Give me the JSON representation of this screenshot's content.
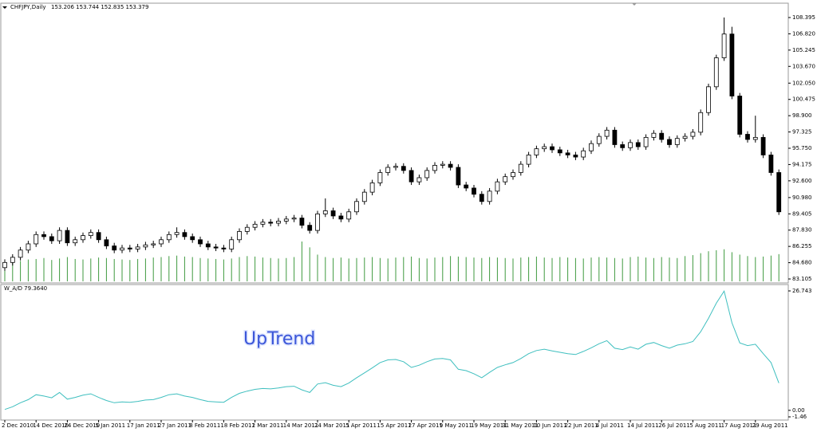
{
  "chart_data": [
    {
      "type": "candlestick",
      "title": "CHFJPY,Daily",
      "subtitle": "153.206 153.744 152.835 153.379",
      "categories": [
        "2 Dec 2010",
        null,
        null,
        null,
        "14 Dec 2010",
        null,
        null,
        null,
        "24 Dec 2010",
        null,
        null,
        null,
        "5 Jan 2011",
        null,
        null,
        null,
        "17 Jan 2011",
        null,
        null,
        null,
        "27 Jan 2011",
        null,
        null,
        null,
        "8 Feb 2011",
        null,
        null,
        null,
        "18 Feb 2011",
        null,
        null,
        null,
        "2 Mar 2011",
        null,
        null,
        null,
        "14 Mar 2011",
        null,
        null,
        null,
        "24 Mar 2011",
        null,
        null,
        null,
        "5 Apr 2011",
        null,
        null,
        null,
        "15 Apr 2011",
        null,
        null,
        null,
        "27 Apr 2011",
        null,
        null,
        null,
        "9 May 2011",
        null,
        null,
        null,
        "19 May 2011",
        null,
        null,
        null,
        "31 May 2011",
        null,
        null,
        null,
        "10 Jun 2011",
        null,
        null,
        null,
        "22 Jun 2011",
        null,
        null,
        null,
        "4 Jul 2011",
        null,
        null,
        null,
        "14 Jul 2011",
        null,
        null,
        null,
        "26 Jul 2011",
        null,
        null,
        null,
        "5 Aug 2011",
        null,
        null,
        null,
        "17 Aug 2011",
        null,
        null,
        null,
        "29 Aug 2011",
        null,
        null,
        null
      ],
      "open": [
        84.2,
        84.7,
        85.2,
        85.9,
        86.5,
        87.4,
        87.2,
        86.8,
        87.8,
        86.6,
        86.9,
        87.3,
        87.6,
        86.9,
        86.3,
        85.9,
        86.1,
        86.0,
        86.2,
        86.4,
        86.5,
        86.9,
        87.4,
        87.6,
        87.2,
        86.9,
        86.5,
        86.2,
        86.1,
        86.0,
        86.9,
        87.7,
        88.1,
        88.4,
        88.6,
        88.5,
        88.7,
        88.9,
        89.0,
        88.3,
        87.8,
        89.4,
        89.7,
        89.2,
        88.9,
        89.6,
        90.6,
        91.5,
        92.4,
        93.4,
        93.9,
        94.0,
        93.6,
        92.5,
        92.9,
        93.6,
        94.1,
        94.2,
        93.9,
        92.2,
        91.9,
        91.3,
        90.6,
        91.6,
        92.5,
        93.0,
        93.4,
        94.2,
        95.1,
        95.7,
        95.9,
        95.6,
        95.3,
        95.1,
        94.9,
        95.5,
        96.2,
        96.9,
        97.5,
        96.1,
        95.8,
        96.3,
        95.9,
        96.8,
        97.2,
        96.6,
        96.1,
        96.7,
        96.9,
        97.3,
        99.2,
        101.7,
        104.5,
        106.8,
        100.8,
        97.1,
        96.6,
        96.8,
        95.1,
        93.4
      ],
      "high": [
        85.0,
        85.5,
        86.2,
        86.8,
        87.7,
        87.7,
        87.5,
        88.1,
        88.1,
        87.2,
        87.6,
        87.9,
        87.9,
        87.2,
        86.6,
        86.4,
        86.4,
        86.5,
        86.7,
        86.8,
        87.2,
        87.7,
        88.1,
        87.9,
        87.5,
        87.2,
        86.8,
        86.5,
        86.4,
        87.2,
        88.0,
        88.4,
        88.7,
        88.9,
        88.9,
        89.0,
        89.2,
        89.3,
        89.3,
        88.6,
        89.7,
        90.9,
        90.0,
        89.5,
        89.9,
        90.9,
        91.8,
        92.7,
        93.7,
        94.2,
        94.3,
        94.3,
        93.9,
        93.2,
        93.9,
        94.4,
        94.5,
        94.5,
        94.2,
        92.5,
        92.2,
        91.6,
        91.9,
        92.8,
        93.3,
        93.7,
        94.5,
        95.4,
        96.0,
        96.2,
        96.2,
        95.9,
        95.6,
        95.4,
        95.8,
        96.5,
        97.2,
        97.8,
        97.8,
        96.4,
        96.6,
        96.6,
        97.1,
        97.5,
        97.5,
        96.9,
        97.0,
        97.2,
        97.6,
        99.5,
        102.0,
        104.8,
        108.4,
        107.5,
        101.1,
        97.4,
        98.9,
        97.1,
        95.4,
        93.7
      ],
      "low": [
        83.9,
        84.4,
        84.9,
        85.6,
        86.2,
        86.9,
        86.5,
        86.5,
        86.3,
        86.3,
        86.6,
        87.0,
        86.6,
        86.0,
        85.6,
        85.6,
        85.7,
        85.7,
        85.9,
        86.1,
        86.2,
        86.6,
        87.1,
        86.9,
        86.6,
        86.2,
        85.9,
        85.8,
        85.7,
        85.7,
        86.6,
        87.4,
        87.8,
        88.1,
        88.2,
        88.2,
        88.4,
        88.6,
        88.0,
        87.5,
        87.5,
        89.1,
        88.9,
        88.6,
        88.6,
        89.3,
        90.3,
        91.2,
        92.1,
        93.1,
        93.6,
        93.3,
        92.2,
        92.2,
        92.6,
        93.3,
        93.8,
        93.6,
        91.9,
        91.6,
        91.0,
        90.3,
        90.3,
        91.3,
        92.2,
        92.7,
        93.1,
        93.9,
        94.8,
        95.4,
        95.3,
        95.0,
        94.8,
        94.6,
        94.6,
        95.2,
        95.9,
        96.6,
        95.8,
        95.5,
        95.5,
        95.6,
        95.6,
        96.5,
        96.3,
        95.8,
        95.8,
        96.4,
        96.6,
        97.0,
        98.9,
        101.4,
        104.2,
        100.5,
        96.8,
        96.3,
        96.3,
        94.8,
        93.1,
        89.3
      ],
      "close": [
        84.7,
        85.2,
        85.9,
        86.5,
        87.4,
        87.2,
        86.8,
        87.8,
        86.6,
        86.9,
        87.3,
        87.6,
        86.9,
        86.3,
        85.9,
        86.1,
        86.0,
        86.2,
        86.4,
        86.5,
        86.9,
        87.4,
        87.6,
        87.2,
        86.9,
        86.5,
        86.2,
        86.1,
        86.0,
        86.9,
        87.7,
        88.1,
        88.4,
        88.6,
        88.5,
        88.7,
        88.9,
        89.0,
        88.3,
        87.8,
        89.4,
        89.7,
        89.2,
        88.9,
        89.6,
        90.6,
        91.5,
        92.4,
        93.4,
        93.9,
        94.0,
        93.6,
        92.5,
        92.9,
        93.6,
        94.1,
        94.2,
        93.9,
        92.2,
        91.9,
        91.3,
        90.6,
        91.6,
        92.5,
        93.0,
        93.4,
        94.2,
        95.1,
        95.7,
        95.9,
        95.6,
        95.3,
        95.1,
        94.9,
        95.5,
        96.2,
        96.9,
        97.5,
        96.1,
        95.8,
        96.3,
        95.9,
        96.8,
        97.2,
        96.6,
        96.1,
        96.7,
        96.9,
        97.3,
        99.2,
        101.7,
        104.5,
        106.8,
        100.8,
        97.1,
        96.6,
        96.8,
        95.1,
        93.4,
        89.6
      ],
      "volume": [
        38,
        40,
        42,
        45,
        46,
        48,
        44,
        47,
        50,
        46,
        45,
        47,
        49,
        48,
        46,
        45,
        44,
        46,
        47,
        49,
        50,
        52,
        53,
        51,
        50,
        48,
        47,
        46,
        45,
        47,
        50,
        52,
        51,
        49,
        48,
        47,
        48,
        50,
        82,
        70,
        55,
        50,
        48,
        49,
        47,
        48,
        49,
        50,
        48,
        47,
        49,
        50,
        51,
        48,
        47,
        49,
        50,
        52,
        51,
        50,
        49,
        48,
        50,
        49,
        48,
        47,
        49,
        50,
        51,
        49,
        48,
        50,
        49,
        48,
        47,
        49,
        50,
        49,
        48,
        47,
        50,
        51,
        49,
        48,
        50,
        49,
        48,
        52,
        54,
        58,
        62,
        64,
        66,
        60,
        55,
        52,
        50,
        51,
        53,
        56
      ],
      "volume_color": "#3f9a3f",
      "up_color": "#ffffff",
      "down_color": "#000000",
      "ylim": [
        83.105,
        108.395
      ],
      "yticks": [
        {
          "value": 108.395,
          "label": "108.395"
        },
        {
          "value": 106.82,
          "label": "106.820"
        },
        {
          "value": 105.245,
          "label": "105.245"
        },
        {
          "value": 103.67,
          "label": "103.670"
        },
        {
          "value": 102.05,
          "label": "102.050"
        },
        {
          "value": 100.475,
          "label": "100.475"
        },
        {
          "value": 98.9,
          "label": "98.900"
        },
        {
          "value": 97.325,
          "label": "97.325"
        },
        {
          "value": 95.75,
          "label": "95.750"
        },
        {
          "value": 94.175,
          "label": "94.175"
        },
        {
          "value": 92.6,
          "label": "92.600"
        },
        {
          "value": 90.98,
          "label": "90.980"
        },
        {
          "value": 89.405,
          "label": "89.405"
        },
        {
          "value": 87.83,
          "label": "87.830"
        },
        {
          "value": 86.255,
          "label": "86.255"
        },
        {
          "value": 84.68,
          "label": "84.680"
        },
        {
          "value": 83.105,
          "label": "83.105"
        }
      ]
    },
    {
      "type": "line",
      "title": "W_A/D 79.3640",
      "annotation": "UpTrend",
      "color": "#3fbfbf",
      "values": [
        0.2,
        0.8,
        1.7,
        2.4,
        3.5,
        3.2,
        2.8,
        4.0,
        2.5,
        2.9,
        3.4,
        3.7,
        2.9,
        2.2,
        1.7,
        1.9,
        1.8,
        2.0,
        2.3,
        2.4,
        2.9,
        3.5,
        3.7,
        3.2,
        2.9,
        2.4,
        2.0,
        1.9,
        1.8,
        2.9,
        3.8,
        4.3,
        4.7,
        4.9,
        4.8,
        5.0,
        5.3,
        5.4,
        4.6,
        4.0,
        5.9,
        6.2,
        5.6,
        5.3,
        6.1,
        7.3,
        8.4,
        9.5,
        10.7,
        11.3,
        11.4,
        10.9,
        9.6,
        10.1,
        10.9,
        11.5,
        11.6,
        11.3,
        9.2,
        8.9,
        8.2,
        7.3,
        8.5,
        9.6,
        10.2,
        10.7,
        11.6,
        12.7,
        13.4,
        13.7,
        13.3,
        13.0,
        12.7,
        12.5,
        13.2,
        14.0,
        14.9,
        15.6,
        13.9,
        13.6,
        14.2,
        13.7,
        14.8,
        15.2,
        14.5,
        13.9,
        14.6,
        14.9,
        15.4,
        17.6,
        20.6,
        24.0,
        26.7,
        19.6,
        15.1,
        14.5,
        14.8,
        12.7,
        10.7,
        6.1
      ],
      "ylim": [
        -1.46,
        26.743
      ],
      "yticks": [
        26.743,
        {
          "value": 0,
          "label": "0.00"
        },
        -1.46
      ]
    }
  ]
}
